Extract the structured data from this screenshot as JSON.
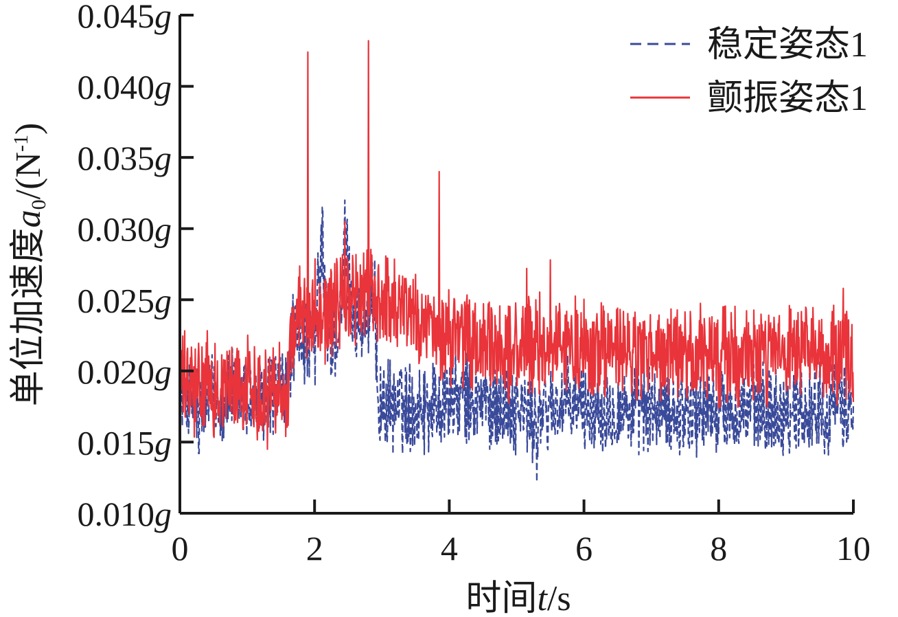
{
  "chart_data": {
    "type": "line",
    "xlabel": {
      "prefix": "时间",
      "var": "t",
      "suffix": "/s"
    },
    "ylabel": {
      "prefix": "单位加速度",
      "var": "a",
      "sub": "0",
      "unit_open": "/(N",
      "sup": "-1",
      "unit_close": ")"
    },
    "xlim": [
      0,
      10
    ],
    "ylim": [
      0.01,
      0.045
    ],
    "xticks": [
      0,
      2,
      4,
      6,
      8,
      10
    ],
    "xtick_labels": [
      "0",
      "2",
      "4",
      "6",
      "8",
      "10"
    ],
    "yticks": [
      0.01,
      0.015,
      0.02,
      0.025,
      0.03,
      0.035,
      0.04,
      0.045
    ],
    "ytick_labels": [
      "0.010g",
      "0.015g",
      "0.020g",
      "0.025g",
      "0.030g",
      "0.035g",
      "0.040g",
      "0.045g"
    ],
    "legend_position": "top-right",
    "series": [
      {
        "name": "稳定姿态1",
        "color": "#3a4a9a",
        "style": "dashed",
        "x": [
          0,
          0.2,
          0.4,
          0.6,
          0.8,
          1.0,
          1.2,
          1.4,
          1.6,
          1.65,
          1.8,
          2.0,
          2.1,
          2.2,
          2.4,
          2.45,
          2.6,
          2.8,
          2.9,
          2.95,
          3.2,
          3.6,
          4.0,
          4.5,
          5.0,
          5.3,
          5.5,
          6.0,
          7.0,
          8.0,
          9.0,
          10.0
        ],
        "y": [
          0.0185,
          0.0175,
          0.018,
          0.018,
          0.0185,
          0.018,
          0.0175,
          0.0185,
          0.0185,
          0.022,
          0.0225,
          0.0215,
          0.0285,
          0.022,
          0.023,
          0.029,
          0.0235,
          0.0235,
          0.0245,
          0.0175,
          0.0175,
          0.0175,
          0.018,
          0.018,
          0.0175,
          0.0165,
          0.0175,
          0.0175,
          0.0172,
          0.0172,
          0.0172,
          0.0175
        ],
        "spikes": [
          {
            "x": 2.12,
            "y": 0.0315
          },
          {
            "x": 2.45,
            "y": 0.032
          },
          {
            "x": 5.3,
            "y": 0.0122
          },
          {
            "x": 0.28,
            "y": 0.0142
          },
          {
            "x": 4.6,
            "y": 0.0145
          }
        ]
      },
      {
        "name": "颤振姿态1",
        "color": "#e8343a",
        "style": "solid",
        "x": [
          0,
          0.2,
          0.4,
          0.6,
          0.8,
          1.0,
          1.2,
          1.4,
          1.6,
          1.65,
          1.8,
          2.0,
          2.2,
          2.4,
          2.6,
          2.8,
          3.0,
          3.2,
          3.4,
          3.6,
          3.8,
          4.0,
          4.5,
          5.0,
          5.5,
          6.0,
          7.0,
          8.0,
          9.0,
          10.0
        ],
        "y": [
          0.0195,
          0.0185,
          0.019,
          0.0185,
          0.019,
          0.019,
          0.0185,
          0.019,
          0.0185,
          0.0225,
          0.024,
          0.0245,
          0.024,
          0.025,
          0.025,
          0.0255,
          0.025,
          0.025,
          0.0245,
          0.023,
          0.0225,
          0.0225,
          0.0215,
          0.0215,
          0.022,
          0.0215,
          0.021,
          0.021,
          0.021,
          0.021
        ],
        "spikes": [
          {
            "x": 1.9,
            "y": 0.0424
          },
          {
            "x": 2.8,
            "y": 0.0432
          },
          {
            "x": 3.85,
            "y": 0.034
          },
          {
            "x": 2.45,
            "y": 0.0305
          },
          {
            "x": 5.5,
            "y": 0.0278
          },
          {
            "x": 5.15,
            "y": 0.0272
          },
          {
            "x": 9.85,
            "y": 0.0258
          },
          {
            "x": 1.3,
            "y": 0.0145
          }
        ]
      }
    ]
  }
}
